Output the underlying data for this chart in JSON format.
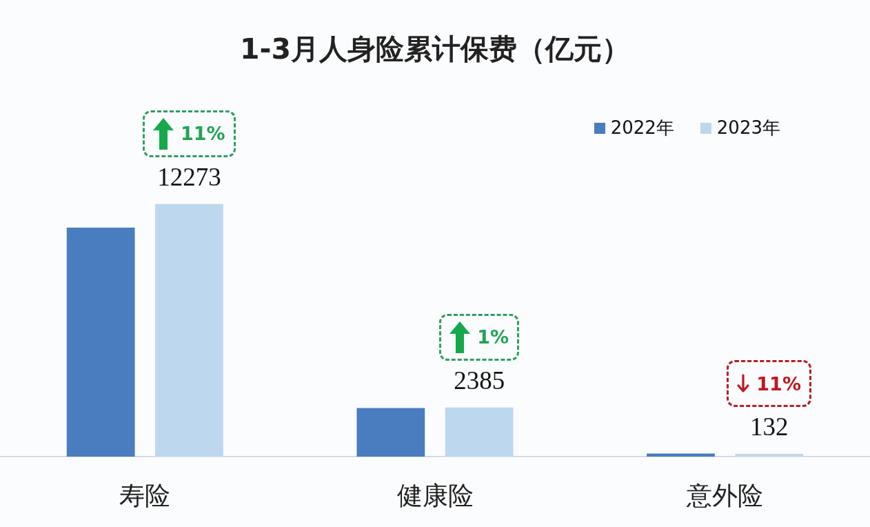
{
  "chart_data": {
    "type": "bar",
    "title": "1-3月人身险累计保费（亿元）",
    "categories": [
      "寿险",
      "健康险",
      "意外险"
    ],
    "series": [
      {
        "name": "2022年",
        "color": "#4a7cc0",
        "values": [
          11130,
          2360,
          150
        ]
      },
      {
        "name": "2023年",
        "color": "#bdd7ee",
        "values": [
          12273,
          2385,
          132
        ],
        "value_labels": [
          "12273",
          "2385",
          "132"
        ]
      }
    ],
    "legend": "top right",
    "annotations": [
      "11%",
      "1%",
      "11%"
    ]
  }
}
